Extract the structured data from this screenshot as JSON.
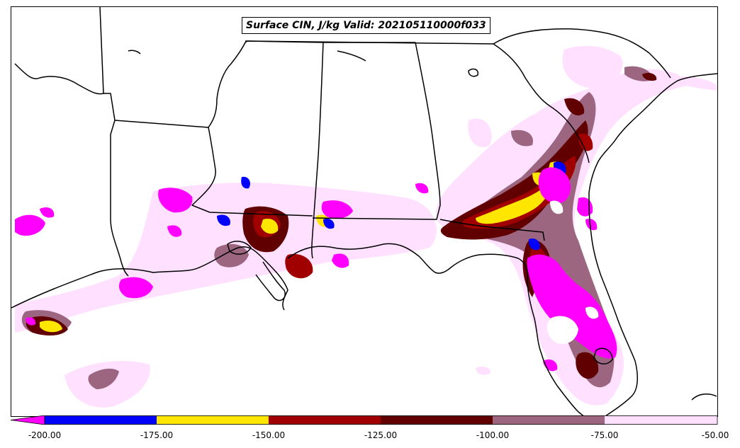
{
  "title": "Surface CIN, J/kg Valid: 202105110000f033",
  "colors": {
    "lt_-200": "#ff00ff",
    "-200_-175": "#0000ff",
    "-175_-150": "#ffe600",
    "-150_-125": "#a00000",
    "-125_-100": "#600000",
    "-100_-75": "#9c6680",
    "-75_-50": "#ffe0ff",
    "boundaries": "#000000"
  },
  "colorbar": {
    "ticks": [
      "-200.00",
      "-175.00",
      "-150.00",
      "-125.00",
      "-100.00",
      "-75.00",
      "-50.00"
    ]
  }
}
